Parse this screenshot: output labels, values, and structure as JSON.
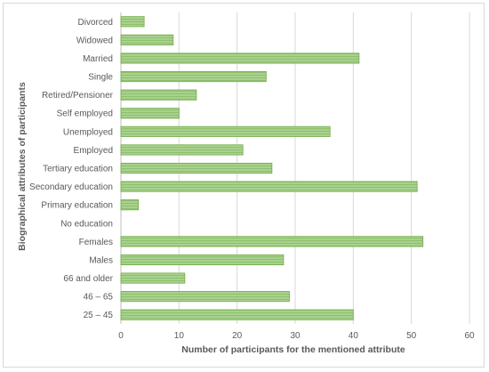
{
  "chart_data": {
    "type": "bar",
    "orientation": "horizontal",
    "categories": [
      "25 – 45",
      "46 – 65",
      "66 and older",
      "Males",
      "Females",
      "No education",
      "Primary education",
      "Secondary education",
      "Tertiary education",
      "Employed",
      "Unemployed",
      "Self employed",
      "Retired/Pensioner",
      "Single",
      "Married",
      "Widowed",
      "Divorced"
    ],
    "values": [
      40,
      29,
      11,
      28,
      52,
      0,
      3,
      51,
      26,
      21,
      36,
      10,
      13,
      25,
      41,
      9,
      4
    ],
    "xlabel": "Number of participants for the mentioned attribute",
    "ylabel": "Biographical attributes of participants",
    "xlim": [
      0,
      60
    ],
    "xticks": [
      "0",
      "10",
      "20",
      "30",
      "40",
      "50",
      "60"
    ],
    "grid": "vertical",
    "bar_color": "#a9d18e",
    "bar_edge_color": "#70ad47"
  }
}
